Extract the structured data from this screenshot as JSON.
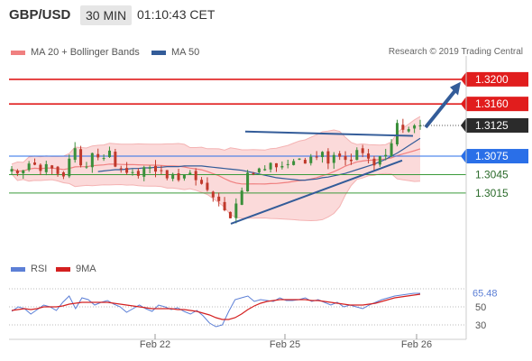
{
  "header": {
    "pair": "GBP/USD",
    "timeframe": "30 MIN",
    "time": "01:10:43 CET"
  },
  "legend": {
    "bb": {
      "label": "MA 20 + Bollinger Bands",
      "color": "#f08080"
    },
    "ma50": {
      "label": "MA 50",
      "color": "#335c99"
    },
    "rsi": {
      "label": "RSI",
      "color": "#5c7fd6"
    },
    "ma9": {
      "label": "9MA",
      "color": "#d42020"
    }
  },
  "credit": "Research © 2019 Trading Central",
  "chart_data": {
    "type": "candlestick",
    "title": "GBP/USD 30 MIN",
    "x_tick_labels": [
      "Feb 22",
      "Feb 25",
      "Feb 26"
    ],
    "ylim": [
      1.2918,
      1.3238
    ],
    "current_price": "1.3125",
    "levels": [
      {
        "label": "1.3200",
        "value": 1.32,
        "kind": "resistance",
        "color": "#e11d1d"
      },
      {
        "label": "1.3160",
        "value": 1.316,
        "kind": "resistance",
        "color": "#e11d1d"
      },
      {
        "label": "1.3075",
        "value": 1.3075,
        "kind": "pivot",
        "color": "#2a6fe8"
      },
      {
        "label": "1.3045",
        "value": 1.3045,
        "kind": "support",
        "color": "#3a9a3a"
      },
      {
        "label": "1.3015",
        "value": 1.3015,
        "kind": "support",
        "color": "#3a9a3a"
      }
    ],
    "close_series": [
      1.3054,
      1.3047,
      1.3052,
      1.3063,
      1.3061,
      1.3051,
      1.3062,
      1.3055,
      1.3046,
      1.3042,
      1.3071,
      1.3088,
      1.306,
      1.3058,
      1.308,
      1.3073,
      1.3072,
      1.3084,
      1.3058,
      1.3055,
      1.3048,
      1.3049,
      1.3043,
      1.3057,
      1.3057,
      1.305,
      1.3052,
      1.3039,
      1.3046,
      1.3036,
      1.3045,
      1.3048,
      1.3036,
      1.303,
      1.302,
      1.3008,
      1.3002,
      1.2987,
      1.2974,
      1.2998,
      1.3019,
      1.3048,
      1.3047,
      1.3055,
      1.3054,
      1.3064,
      1.3057,
      1.3059,
      1.3062,
      1.3067,
      1.3071,
      1.3063,
      1.3074,
      1.3074,
      1.3082,
      1.3063,
      1.3077,
      1.3074,
      1.3069,
      1.3067,
      1.3085,
      1.308,
      1.3071,
      1.306,
      1.3075,
      1.3077,
      1.3096,
      1.3129,
      1.3118,
      1.3119,
      1.3125,
      1.3125
    ],
    "ma50_series": [
      1.305,
      1.3051,
      1.3052,
      1.3053,
      1.3053,
      1.3054,
      1.3055,
      1.3055,
      1.3056,
      1.3056,
      1.3057,
      1.3057,
      1.3058,
      1.3058,
      1.3058,
      1.3059,
      1.3059,
      1.3059,
      1.3059,
      1.3058,
      1.3057,
      1.3056,
      1.3055,
      1.3054,
      1.3053,
      1.3052,
      1.305,
      1.3048,
      1.3046,
      1.3044,
      1.3042,
      1.304,
      1.3039,
      1.3038,
      1.3037,
      1.3036,
      1.3036,
      1.3037,
      1.3038,
      1.304,
      1.3041,
      1.3043,
      1.3045,
      1.3047,
      1.305,
      1.3053,
      1.3056,
      1.3059,
      1.3062,
      1.3066,
      1.307,
      1.3075,
      1.308,
      1.3086,
      1.3092,
      1.3098,
      1.3104
    ],
    "trendlines": [
      {
        "from": [
          1.3115,
          "Feb 25"
        ],
        "to": [
          1.3108,
          "Feb 26"
        ],
        "label": ""
      },
      {
        "from": [
          1.2965,
          "Feb 25"
        ],
        "to": [
          1.3068,
          "Feb 26"
        ],
        "label": ""
      }
    ],
    "rsi": {
      "ylim": [
        20,
        80
      ],
      "tick_labels": [
        "50",
        "30"
      ],
      "current": "65.48",
      "values": [
        45,
        50,
        48,
        42,
        47,
        52,
        50,
        46,
        55,
        62,
        48,
        60,
        58,
        52,
        55,
        57,
        53,
        50,
        44,
        48,
        52,
        48,
        45,
        52,
        50,
        47,
        49,
        45,
        42,
        46,
        40,
        32,
        28,
        30,
        45,
        58,
        60,
        62,
        56,
        58,
        57,
        56,
        60,
        57,
        57,
        58,
        60,
        56,
        58,
        55,
        52,
        55,
        50,
        52,
        50,
        48,
        52,
        55,
        58,
        60,
        62,
        63,
        64,
        65,
        65
      ],
      "ma9_values": [
        46,
        47,
        48,
        47,
        48,
        50,
        50,
        50,
        51,
        53,
        54,
        55,
        55,
        55,
        55,
        55,
        54,
        53,
        52,
        51,
        50,
        49,
        48,
        48,
        48,
        48,
        47,
        47,
        46,
        45,
        43,
        41,
        38,
        36,
        36,
        38,
        42,
        47,
        51,
        54,
        56,
        57,
        58,
        58,
        58,
        58,
        58,
        57,
        57,
        56,
        55,
        54,
        53,
        52,
        52,
        52,
        53,
        54,
        56,
        58,
        60,
        61,
        62,
        63,
        64
      ]
    }
  }
}
